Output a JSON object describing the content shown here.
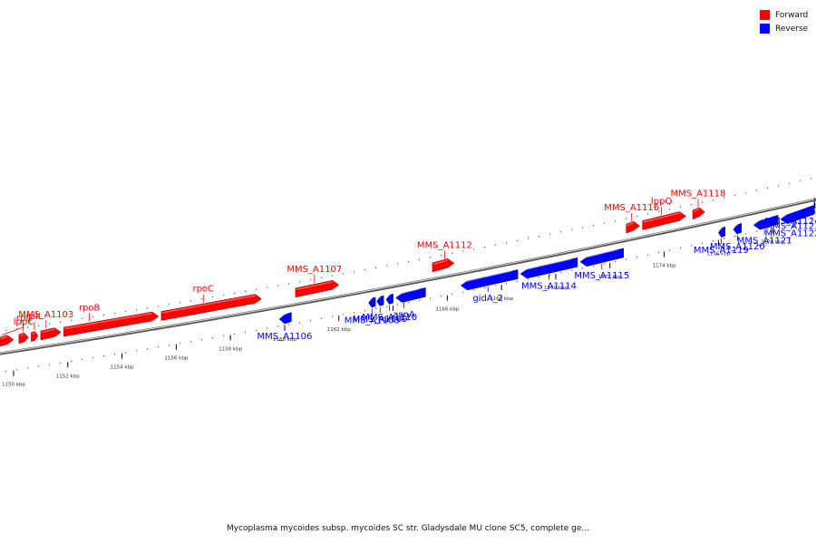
{
  "legend": {
    "forward": {
      "label": "Forward",
      "color": "#ff0000"
    },
    "reverse": {
      "label": "Reverse",
      "color": "#0000ff"
    }
  },
  "caption": "Mycoplasma mycoides subsp. mycoides SC str. Gladysdale MU clone SC5, complete ge...",
  "axis": {
    "start_kbp": 1149.5,
    "end_kbp": 1179.6,
    "ticks": [
      {
        "kbp": 1150,
        "label": "1150 kbp"
      },
      {
        "kbp": 1152,
        "label": "1152 kbp"
      },
      {
        "kbp": 1154,
        "label": "1154 kbp"
      },
      {
        "kbp": 1156,
        "label": "1156 kbp"
      },
      {
        "kbp": 1158,
        "label": "1158 kbp"
      },
      {
        "kbp": 1160,
        "label": "1160 kbp"
      },
      {
        "kbp": 1162,
        "label": "1162 kbp"
      },
      {
        "kbp": 1164,
        "label": "1164 kbp"
      },
      {
        "kbp": 1166,
        "label": "1166 kbp"
      },
      {
        "kbp": 1168,
        "label": "1168 kbp"
      },
      {
        "kbp": 1170,
        "label": "1170 kbp"
      },
      {
        "kbp": 1172,
        "label": "1172 kbp"
      },
      {
        "kbp": 1174,
        "label": "1174 kbp"
      },
      {
        "kbp": 1176,
        "label": "1176 kbp"
      },
      {
        "kbp": 1178,
        "label": "1178 kbp"
      }
    ]
  },
  "genes": [
    {
      "name": "lppC",
      "strand": "forward",
      "start_kbp": 1149.5,
      "end_kbp": 1150.0,
      "label_kbp": 1149.55
    },
    {
      "name": "rplJ",
      "strand": "forward",
      "start_kbp": 1150.2,
      "end_kbp": 1150.55,
      "label_kbp": 1150.35
    },
    {
      "name": "rplL",
      "strand": "forward",
      "start_kbp": 1150.65,
      "end_kbp": 1150.9,
      "label_kbp": 1150.77
    },
    {
      "name": "MMS_A1103",
      "strand": "forward",
      "start_kbp": 1151.0,
      "end_kbp": 1151.75,
      "label_kbp": 1151.2
    },
    {
      "name": "rpoB",
      "strand": "forward",
      "start_kbp": 1151.85,
      "end_kbp": 1155.35,
      "label_kbp": 1152.8
    },
    {
      "name": "rpoC",
      "strand": "forward",
      "start_kbp": 1155.45,
      "end_kbp": 1159.15,
      "label_kbp": 1157.0
    },
    {
      "name": "MMS_A1106",
      "strand": "reverse",
      "start_kbp": 1159.8,
      "end_kbp": 1160.25,
      "label_kbp": 1160.0
    },
    {
      "name": "MMS_A1107",
      "strand": "forward",
      "start_kbp": 1160.4,
      "end_kbp": 1162.0,
      "label_kbp": 1161.1
    },
    {
      "name": "MMS_A1108",
      "strand": "reverse",
      "start_kbp": 1163.1,
      "end_kbp": 1163.35,
      "label_kbp": 1163.22
    },
    {
      "name": "MMS_A1109",
      "strand": "reverse",
      "start_kbp": 1163.4,
      "end_kbp": 1163.65,
      "label_kbp": 1163.52
    },
    {
      "name": "MMS_A1110",
      "strand": "reverse",
      "start_kbp": 1163.75,
      "end_kbp": 1164.0,
      "label_kbp": 1163.87
    },
    {
      "name": "asnA",
      "strand": "reverse",
      "start_kbp": 1164.1,
      "end_kbp": 1165.2,
      "label_kbp": 1164.4
    },
    {
      "name": "MMS_A1112",
      "strand": "forward",
      "start_kbp": 1165.45,
      "end_kbp": 1166.25,
      "label_kbp": 1165.9
    },
    {
      "name": "gidA_2",
      "strand": "reverse",
      "start_kbp": 1166.5,
      "end_kbp": 1168.6,
      "label_kbp": 1167.5
    },
    {
      "name": "MMS_A1114",
      "strand": "reverse",
      "start_kbp": 1168.7,
      "end_kbp": 1170.8,
      "label_kbp": 1169.75
    },
    {
      "name": "MMS_A1115",
      "strand": "reverse",
      "start_kbp": 1170.9,
      "end_kbp": 1172.5,
      "label_kbp": 1171.7
    },
    {
      "name": "MMS_A1116",
      "strand": "forward",
      "start_kbp": 1172.6,
      "end_kbp": 1173.1,
      "label_kbp": 1172.8
    },
    {
      "name": "lppQ",
      "strand": "forward",
      "start_kbp": 1173.2,
      "end_kbp": 1174.8,
      "label_kbp": 1173.9
    },
    {
      "name": "MMS_A1118",
      "strand": "forward",
      "start_kbp": 1175.05,
      "end_kbp": 1175.5,
      "label_kbp": 1175.25
    },
    {
      "name": "MMS_A1119",
      "strand": "reverse",
      "start_kbp": 1176.0,
      "end_kbp": 1176.25,
      "label_kbp": 1176.1
    },
    {
      "name": "MMS_A1120",
      "strand": "reverse",
      "start_kbp": 1176.55,
      "end_kbp": 1176.85,
      "label_kbp": 1176.7
    },
    {
      "name": "MMS_A1121",
      "strand": "reverse",
      "start_kbp": 1177.3,
      "end_kbp": 1178.2,
      "label_kbp": 1177.7
    },
    {
      "name": "MMS_A1122",
      "strand": "reverse",
      "start_kbp": 1178.3,
      "end_kbp": 1179.85,
      "label_kbp": 1178.9
    },
    {
      "name": "MMS_A1123",
      "strand": "reverse",
      "start_kbp": 1179.95,
      "end_kbp": 1180.4,
      "label_kbp": 1180.15
    },
    {
      "name": "MMS_A1124",
      "strand": "reverse",
      "start_kbp": 1180.8,
      "end_kbp": 1181.05,
      "label_kbp": 1180.9
    }
  ]
}
